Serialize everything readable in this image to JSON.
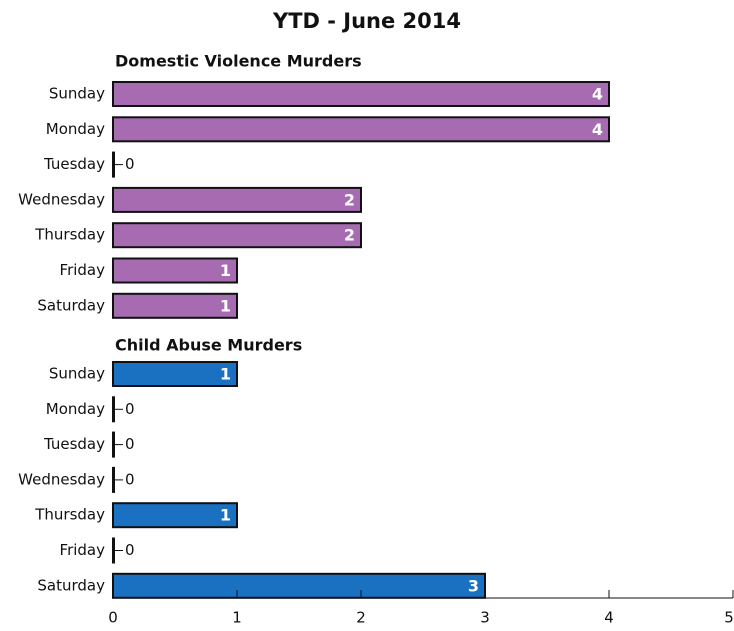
{
  "chart_data": {
    "type": "bar",
    "title": "YTD - June 2014",
    "categories": [
      "Sunday",
      "Monday",
      "Tuesday",
      "Wednesday",
      "Thursday",
      "Friday",
      "Saturday"
    ],
    "series": [
      {
        "name": "Domestic Violence Murders",
        "color": "#a66bb0",
        "values": [
          4,
          4,
          0,
          2,
          2,
          1,
          1
        ]
      },
      {
        "name": "Child Abuse Murders",
        "color": "#1a70c1",
        "values": [
          1,
          0,
          0,
          0,
          1,
          0,
          3
        ]
      }
    ],
    "xlim": [
      0,
      5
    ],
    "xticks": [
      0,
      1,
      2,
      3,
      4,
      5
    ]
  }
}
